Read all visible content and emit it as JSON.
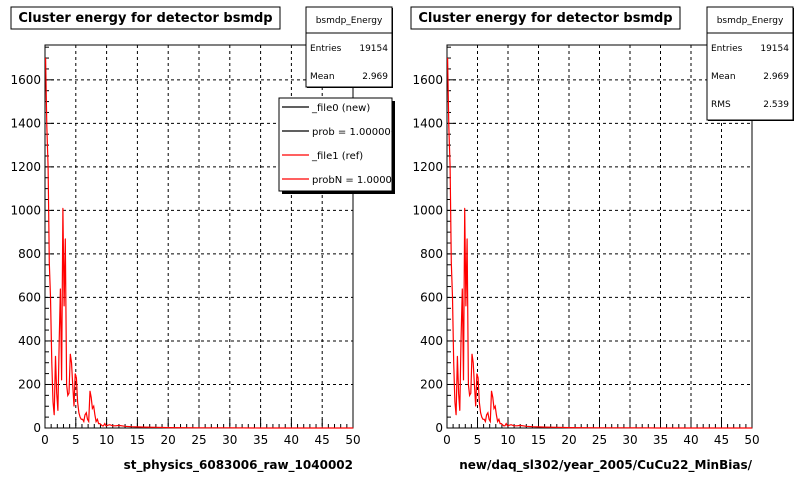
{
  "chart_data": [
    {
      "type": "line",
      "title": "Cluster energy for detector bsmdp",
      "xlabel": "st_physics_6083006_raw_1040002",
      "xlim": [
        0,
        50
      ],
      "ylim": [
        0,
        1760
      ],
      "x_ticks": [
        "0",
        "5",
        "10",
        "15",
        "20",
        "25",
        "30",
        "35",
        "40",
        "45",
        "50"
      ],
      "y_ticks": [
        "0",
        "200",
        "400",
        "600",
        "800",
        "1000",
        "1200",
        "1400",
        "1600"
      ],
      "grid": true,
      "stats": {
        "name": "bsmdp_Energy",
        "rows": [
          {
            "label": "Entries",
            "value": "19154"
          },
          {
            "label": "Mean",
            "value": "2.969"
          }
        ]
      },
      "legend": {
        "placement": "top-right",
        "entries": [
          {
            "label": "_file0 (new)",
            "color": "#000000"
          },
          {
            "label": "prob = 1.000000",
            "color": "#000000"
          },
          {
            "label": "_file1 (ref)",
            "color": "#ff0000"
          },
          {
            "label": "probN = 1.000000",
            "color": "#ff0000"
          }
        ]
      },
      "series": [
        {
          "color": "#ff0000",
          "x": [
            0.1,
            0.3,
            0.5,
            0.7,
            0.9,
            1.1,
            1.3,
            1.5,
            1.7,
            1.9,
            2.1,
            2.3,
            2.5,
            2.7,
            2.9,
            3.1,
            3.3,
            3.5,
            3.7,
            3.9,
            4.1,
            4.3,
            4.5,
            4.7,
            4.9,
            5.1,
            5.3,
            5.5,
            5.7,
            5.9,
            6.1,
            6.3,
            6.5,
            6.7,
            6.9,
            7.1,
            7.3,
            7.5,
            7.7,
            7.9,
            8.1,
            8.3,
            8.5,
            8.7,
            8.9,
            9.1,
            9.3,
            9.5,
            9.7,
            9.9,
            10.5,
            11,
            11.5,
            12,
            13,
            14,
            15,
            16,
            18,
            20,
            25,
            30,
            35,
            40,
            45,
            50
          ],
          "y": [
            1700,
            1390,
            1200,
            760,
            600,
            300,
            120,
            60,
            330,
            160,
            80,
            400,
            640,
            220,
            1010,
            560,
            870,
            200,
            150,
            160,
            340,
            300,
            200,
            100,
            250,
            230,
            120,
            70,
            50,
            40,
            40,
            30,
            60,
            70,
            40,
            30,
            170,
            140,
            90,
            100,
            60,
            30,
            40,
            20,
            20,
            15,
            10,
            10,
            20,
            10,
            15,
            10,
            10,
            12,
            8,
            6,
            5,
            4,
            3,
            2,
            1,
            1,
            0,
            0,
            0,
            0
          ]
        }
      ]
    },
    {
      "type": "line",
      "title": "Cluster energy for detector bsmdp",
      "xlabel": "new/daq_sl302/year_2005/CuCu22_MinBias/",
      "xlim": [
        0,
        50
      ],
      "ylim": [
        0,
        1760
      ],
      "x_ticks": [
        "0",
        "5",
        "10",
        "15",
        "20",
        "25",
        "30",
        "35",
        "40",
        "45",
        "50"
      ],
      "y_ticks": [
        "0",
        "200",
        "400",
        "600",
        "800",
        "1000",
        "1200",
        "1400",
        "1600"
      ],
      "grid": true,
      "stats": {
        "name": "bsmdp_Energy",
        "rows": [
          {
            "label": "Entries",
            "value": "19154"
          },
          {
            "label": "Mean",
            "value": "2.969"
          },
          {
            "label": "RMS",
            "value": "2.539"
          }
        ]
      },
      "series": [
        {
          "color": "#ff0000",
          "x": [
            0.1,
            0.3,
            0.5,
            0.7,
            0.9,
            1.1,
            1.3,
            1.5,
            1.7,
            1.9,
            2.1,
            2.3,
            2.5,
            2.7,
            2.9,
            3.1,
            3.3,
            3.5,
            3.7,
            3.9,
            4.1,
            4.3,
            4.5,
            4.7,
            4.9,
            5.1,
            5.3,
            5.5,
            5.7,
            5.9,
            6.1,
            6.3,
            6.5,
            6.7,
            6.9,
            7.1,
            7.3,
            7.5,
            7.7,
            7.9,
            8.1,
            8.3,
            8.5,
            8.7,
            8.9,
            9.1,
            9.3,
            9.5,
            9.7,
            9.9,
            10.5,
            11,
            11.5,
            12,
            13,
            14,
            15,
            16,
            18,
            20,
            25,
            30,
            35,
            40,
            45,
            50
          ],
          "y": [
            1700,
            1390,
            1200,
            760,
            600,
            300,
            120,
            60,
            330,
            160,
            80,
            400,
            640,
            220,
            1010,
            560,
            870,
            200,
            150,
            160,
            340,
            300,
            200,
            100,
            250,
            230,
            120,
            70,
            50,
            40,
            40,
            30,
            60,
            70,
            40,
            30,
            170,
            140,
            90,
            100,
            60,
            30,
            40,
            20,
            20,
            15,
            10,
            10,
            20,
            10,
            15,
            10,
            10,
            12,
            8,
            6,
            5,
            4,
            3,
            2,
            1,
            1,
            0,
            0,
            0,
            0
          ]
        }
      ]
    }
  ]
}
